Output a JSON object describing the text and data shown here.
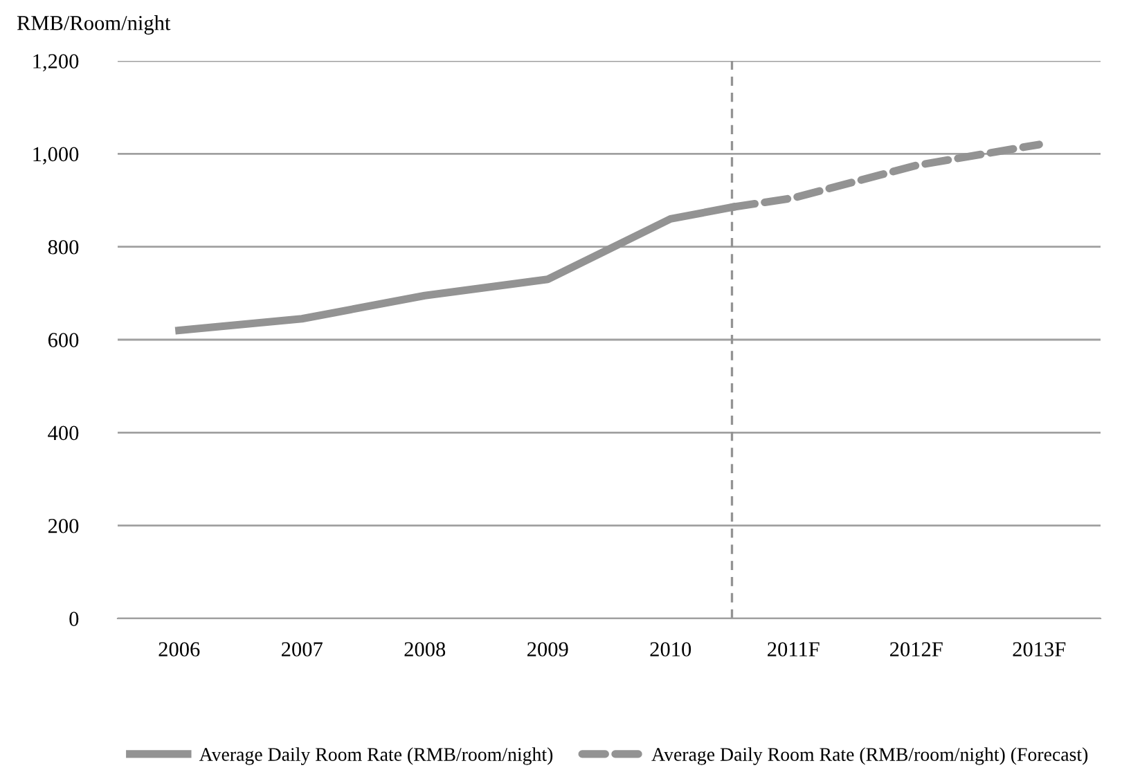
{
  "chart_data": {
    "type": "line",
    "ylabel": "RMB/Room/night",
    "xlim": [
      2005.5,
      2013.5
    ],
    "xticks": [
      2006,
      2007,
      2008,
      2009,
      2010,
      {
        "value": 2011,
        "label": "2011F"
      },
      {
        "value": 2012,
        "label": "2012F"
      },
      {
        "value": 2013,
        "label": "2013F"
      }
    ],
    "ylim": [
      0,
      1200
    ],
    "yticks": [
      {
        "value": 0,
        "label": "0"
      },
      {
        "value": 200,
        "label": "200"
      },
      {
        "value": 400,
        "label": "400"
      },
      {
        "value": 600,
        "label": "600"
      },
      {
        "value": 800,
        "label": "800"
      },
      {
        "value": 1000,
        "label": "1,000"
      },
      {
        "value": 1200,
        "label": "1,200"
      }
    ],
    "series": [
      {
        "name": "Average Daily Room Rate (RMB/room/night)",
        "color": "#939393",
        "line_style": "solid",
        "x": [
          2006,
          2007,
          2008,
          2009,
          2010,
          2010.5
        ],
        "values": [
          620,
          645,
          695,
          730,
          860,
          885
        ]
      },
      {
        "name": "Average Daily Room Rate (RMB/room/night) (Forecast)",
        "color": "#939393",
        "line_style": "dashed",
        "x": [
          2010.5,
          2011,
          2012,
          2013
        ],
        "values": [
          885,
          905,
          975,
          1020
        ]
      }
    ],
    "ref_lines": [
      {
        "axis": "x",
        "value": 2010.5,
        "color": "#939393",
        "line_style": "dashed"
      }
    ],
    "grid": "y",
    "legend": "bottom",
    "marker": "none"
  }
}
